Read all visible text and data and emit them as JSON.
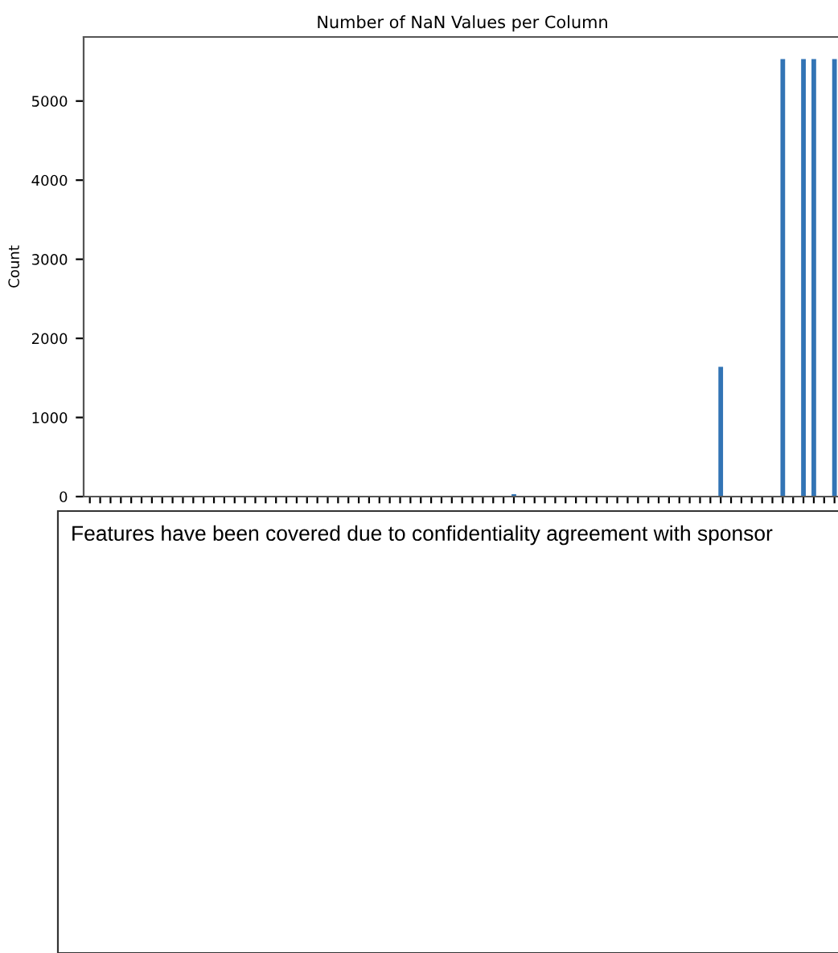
{
  "chart_data": {
    "type": "bar",
    "title": "Number of NaN Values per Column",
    "ylabel": "Count",
    "categories": [
      null,
      null,
      null,
      null,
      null,
      null,
      null,
      null,
      null,
      null,
      null,
      null,
      null,
      null,
      null,
      null,
      null,
      null,
      null,
      null,
      null,
      null,
      null,
      null,
      null,
      null,
      null,
      null,
      null,
      null,
      null,
      null,
      null,
      null,
      null,
      null,
      null,
      null,
      null,
      null,
      null,
      null,
      null,
      null,
      null,
      null,
      null,
      null,
      null,
      null,
      null,
      null,
      null,
      null,
      null,
      null,
      null,
      null,
      null,
      null,
      null,
      null,
      null,
      null,
      null,
      null,
      null,
      null,
      null,
      null,
      null,
      null,
      null
    ],
    "values": [
      0,
      0,
      0,
      0,
      0,
      0,
      0,
      0,
      0,
      0,
      0,
      0,
      0,
      0,
      0,
      0,
      0,
      0,
      0,
      0,
      0,
      0,
      0,
      0,
      0,
      0,
      0,
      0,
      0,
      0,
      0,
      0,
      0,
      0,
      0,
      0,
      0,
      0,
      0,
      0,
      0,
      30,
      0,
      0,
      0,
      0,
      0,
      0,
      0,
      0,
      0,
      0,
      0,
      0,
      0,
      0,
      0,
      0,
      0,
      0,
      0,
      1640,
      0,
      0,
      0,
      0,
      0,
      5530,
      0,
      5530,
      5530,
      0,
      5530
    ],
    "color": "#3274b5",
    "ylim": [
      0,
      5810
    ],
    "yticks": [
      0,
      1000,
      2000,
      3000,
      4000,
      5000
    ],
    "grid": false,
    "tick_labels": "y",
    "annotations": [
      "Features have been covered due to confidentiality agreement with sponsor"
    ]
  }
}
